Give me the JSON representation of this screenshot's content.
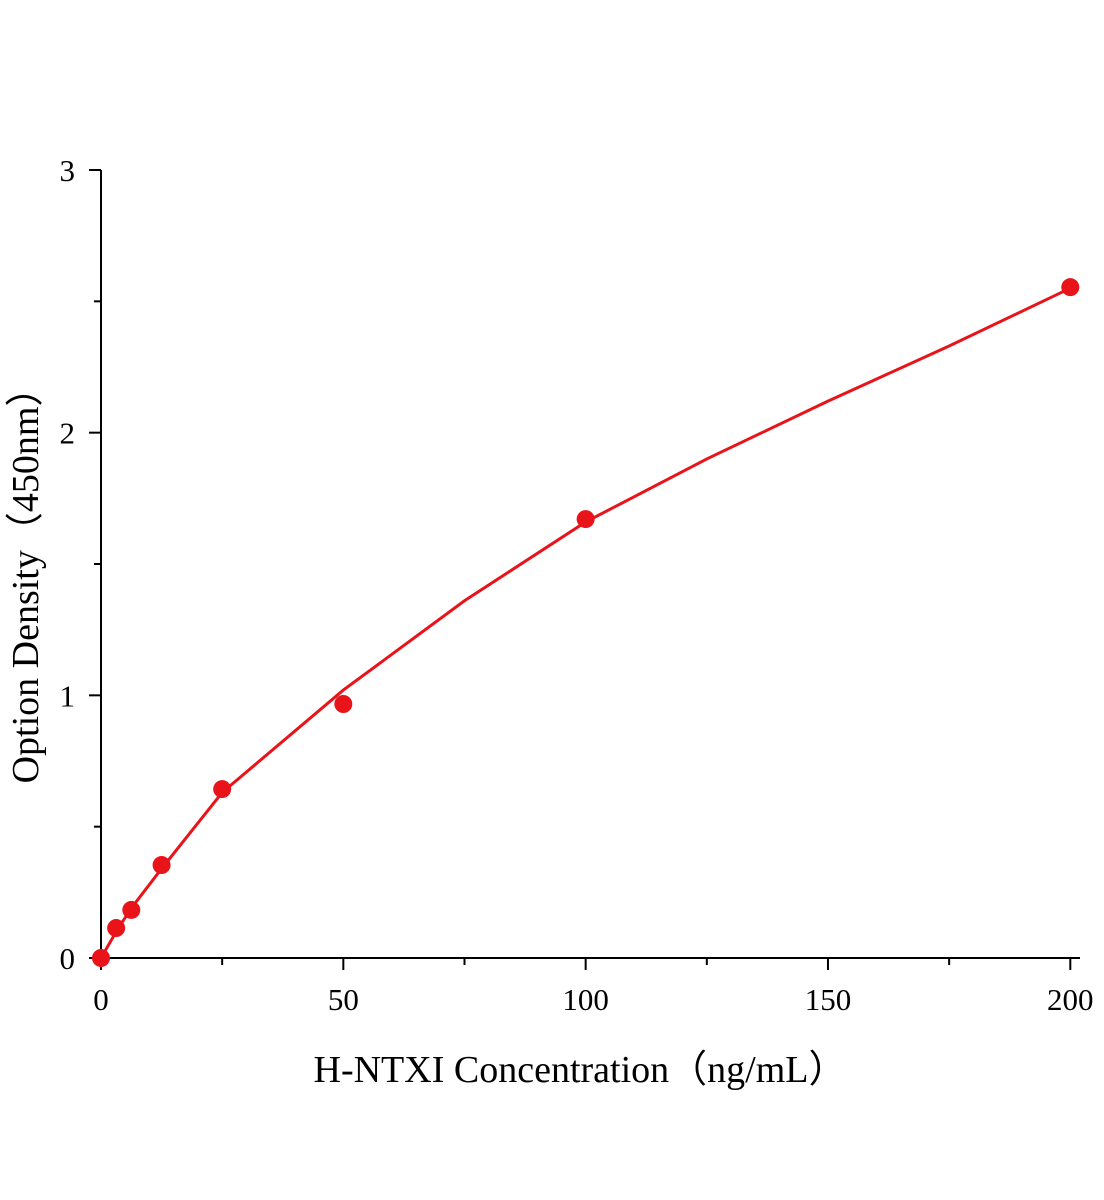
{
  "chart_data": {
    "type": "scatter",
    "xlabel": "H-NTXI Concentration（ng/mL）",
    "ylabel": "Option Density（450nm）",
    "xlim": [
      0,
      202
    ],
    "ylim": [
      0,
      3
    ],
    "xticks": [
      0,
      50,
      100,
      150,
      200
    ],
    "xminor": [
      25,
      75,
      125,
      175
    ],
    "yticks": [
      0,
      1,
      2,
      3
    ],
    "yminor": [
      0.5,
      1.5,
      2.5
    ],
    "series": [
      {
        "style": "line",
        "color": "#e8141a",
        "x": [
          0,
          3.125,
          6.25,
          12.5,
          25,
          50,
          75,
          100,
          125,
          150,
          175,
          200
        ],
        "values": [
          0,
          0.1,
          0.19,
          0.34,
          0.63,
          1.02,
          1.36,
          1.66,
          1.9,
          2.12,
          2.33,
          2.55
        ]
      },
      {
        "style": "markers",
        "color": "#e8141a",
        "x": [
          0,
          3.125,
          6.25,
          12.5,
          25,
          50,
          100,
          200
        ],
        "values": [
          0,
          0.114,
          0.183,
          0.354,
          0.643,
          0.967,
          1.671,
          2.554
        ]
      }
    ]
  }
}
